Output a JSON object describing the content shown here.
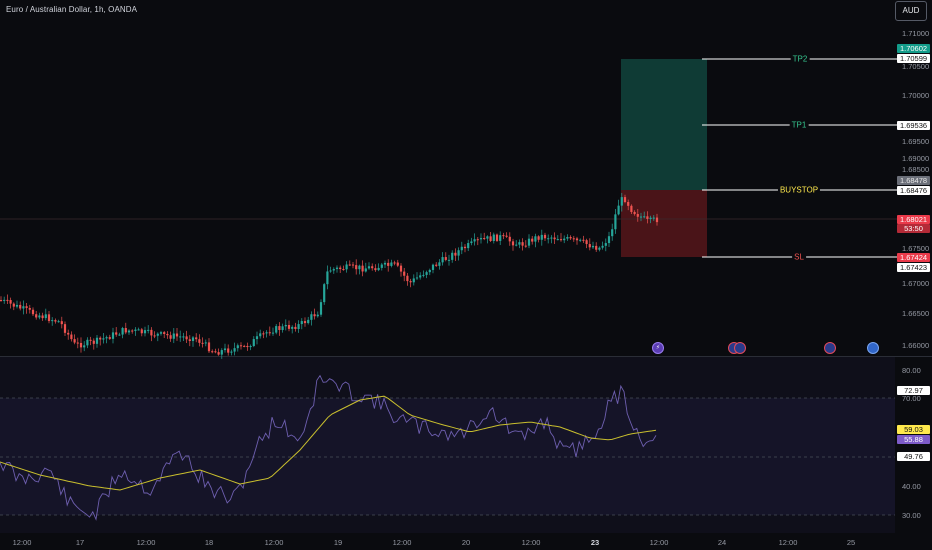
{
  "symbol": "Euro / Australian Dollar, 1h, OANDA",
  "currency_button": "AUD",
  "colors": {
    "up": "#26a69a",
    "down": "#ef5350",
    "tp_zone": "#0f3b35",
    "sl_zone": "#4a1418",
    "rsi_line": "#6e5fb0",
    "ma_line": "#c9bf2e"
  },
  "price_axis": [
    "1.71000",
    "1.70500",
    "1.70000",
    "1.69500",
    "1.69000",
    "1.68500",
    "1.67500",
    "1.67000",
    "1.66500",
    "1.66000"
  ],
  "price_tags": {
    "tp2_top": "1.70602",
    "tp2": "1.70599",
    "tp1": "1.69536",
    "buystop_top": "1.68478",
    "buystop": "1.68476",
    "last_price": "1.68021",
    "countdown": "53:50",
    "sl_top": "1.67424",
    "sl": "1.67423"
  },
  "levels": {
    "tp2": "TP2",
    "tp1": "TP1",
    "buystop": "BUYSTOP",
    "sl": "SL"
  },
  "events": [
    "lightning-event",
    "flag-event",
    "flag-event",
    "flag-event",
    "flag-event"
  ],
  "rsi": {
    "axis": [
      "80.00",
      "70.00",
      "40.00",
      "30.00"
    ],
    "tag_upper": "72.97",
    "tag_ma": "59.03",
    "tag_rsi": "55.88",
    "tag_lower": "49.76"
  },
  "time_axis": [
    {
      "label": "12:00",
      "bold": false
    },
    {
      "label": "17",
      "bold": false
    },
    {
      "label": "12:00",
      "bold": false
    },
    {
      "label": "18",
      "bold": false
    },
    {
      "label": "12:00",
      "bold": false
    },
    {
      "label": "19",
      "bold": false
    },
    {
      "label": "12:00",
      "bold": false
    },
    {
      "label": "20",
      "bold": false
    },
    {
      "label": "12:00",
      "bold": false
    },
    {
      "label": "23",
      "bold": true
    },
    {
      "label": "12:00",
      "bold": false
    },
    {
      "label": "24",
      "bold": false
    },
    {
      "label": "12:00",
      "bold": false
    },
    {
      "label": "25",
      "bold": false
    }
  ]
}
